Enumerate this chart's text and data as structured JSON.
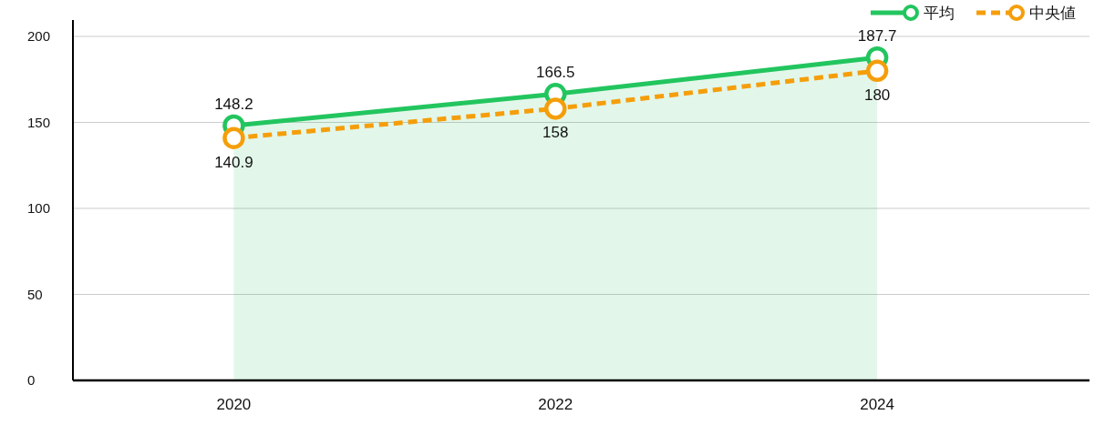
{
  "chart_data": {
    "type": "line",
    "categories": [
      "2020",
      "2022",
      "2024"
    ],
    "series": [
      {
        "name": "平均",
        "type": "area",
        "color": "#22c55e",
        "values": [
          148.2,
          166.5,
          187.7
        ]
      },
      {
        "name": "中央値",
        "type": "line",
        "color": "#f59e0b",
        "line_style": "dashed",
        "values": [
          140.9,
          158,
          180
        ]
      }
    ],
    "ylim": [
      0,
      200
    ],
    "yticks": [
      0,
      50,
      100,
      150,
      200
    ],
    "grid": "y",
    "legend": "top right",
    "marker": "circle",
    "data_labels": true
  }
}
